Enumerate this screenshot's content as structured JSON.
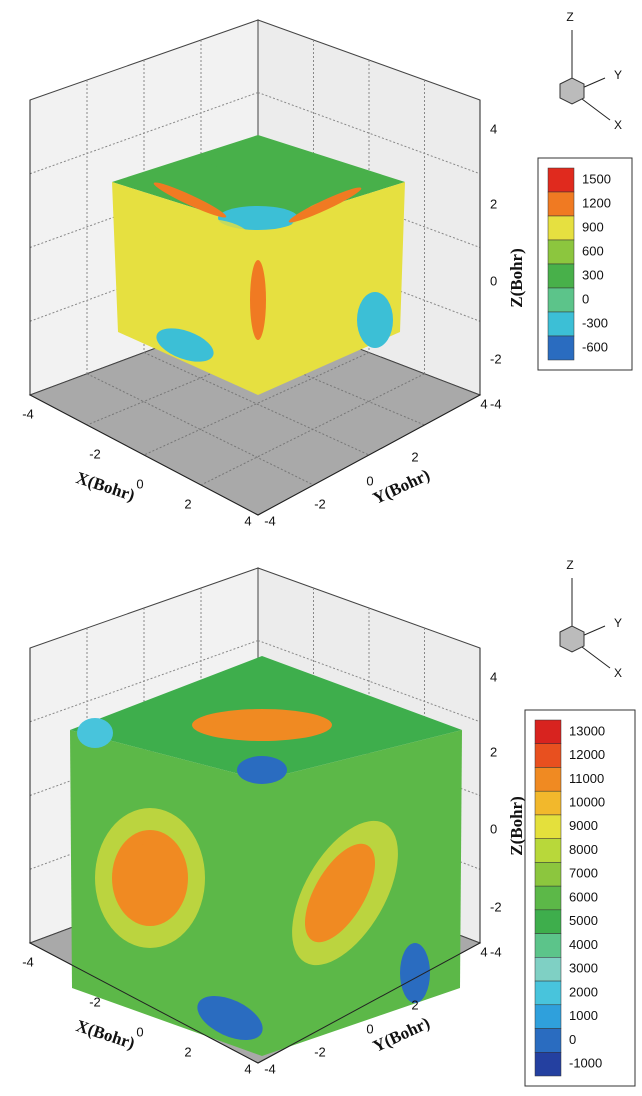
{
  "panels": [
    {
      "x_axis": {
        "label": "X(Bohr)",
        "ticks": [
          "-4",
          "-2",
          "0",
          "2",
          "4"
        ]
      },
      "y_axis": {
        "label": "Y(Bohr)",
        "ticks": [
          "-4",
          "-2",
          "0",
          "2",
          "4"
        ]
      },
      "z_axis": {
        "label": "Z(Bohr)",
        "ticks": [
          "-4",
          "-2",
          "0",
          "2",
          "4"
        ]
      },
      "triad": {
        "z": "Z",
        "y": "Y",
        "x": "X"
      },
      "colorbar": {
        "levels": [
          {
            "label": "1500",
            "color": "#e02a1e"
          },
          {
            "label": "1200",
            "color": "#f07a22"
          },
          {
            "label": "900",
            "color": "#e6e040"
          },
          {
            "label": "600",
            "color": "#8cc63e"
          },
          {
            "label": "300",
            "color": "#48b04a"
          },
          {
            "label": "0",
            "color": "#5cc48a"
          },
          {
            "label": "-300",
            "color": "#3cbfd6"
          },
          {
            "label": "-600",
            "color": "#2a6cc0"
          }
        ]
      }
    },
    {
      "x_axis": {
        "label": "X(Bohr)",
        "ticks": [
          "-4",
          "-2",
          "0",
          "2",
          "4"
        ]
      },
      "y_axis": {
        "label": "Y(Bohr)",
        "ticks": [
          "-4",
          "-2",
          "0",
          "2",
          "4"
        ]
      },
      "z_axis": {
        "label": "Z(Bohr)",
        "ticks": [
          "-4",
          "-2",
          "0",
          "2",
          "4"
        ]
      },
      "triad": {
        "z": "Z",
        "y": "Y",
        "x": "X"
      },
      "colorbar": {
        "levels": [
          {
            "label": "13000",
            "color": "#d8231f"
          },
          {
            "label": "12000",
            "color": "#e8501f"
          },
          {
            "label": "11000",
            "color": "#f08a22"
          },
          {
            "label": "10000",
            "color": "#f2b82c"
          },
          {
            "label": "9000",
            "color": "#e4e03c"
          },
          {
            "label": "8000",
            "color": "#b8d83a"
          },
          {
            "label": "7000",
            "color": "#8cc63e"
          },
          {
            "label": "6000",
            "color": "#5cb848"
          },
          {
            "label": "5000",
            "color": "#3eae4c"
          },
          {
            "label": "4000",
            "color": "#5cc48a"
          },
          {
            "label": "3000",
            "color": "#7fd0c4"
          },
          {
            "label": "2000",
            "color": "#48c4dc"
          },
          {
            "label": "1000",
            "color": "#2fa0dc"
          },
          {
            "label": "0",
            "color": "#2a6cc0"
          },
          {
            "label": "-1000",
            "color": "#2440a0"
          }
        ]
      }
    }
  ]
}
